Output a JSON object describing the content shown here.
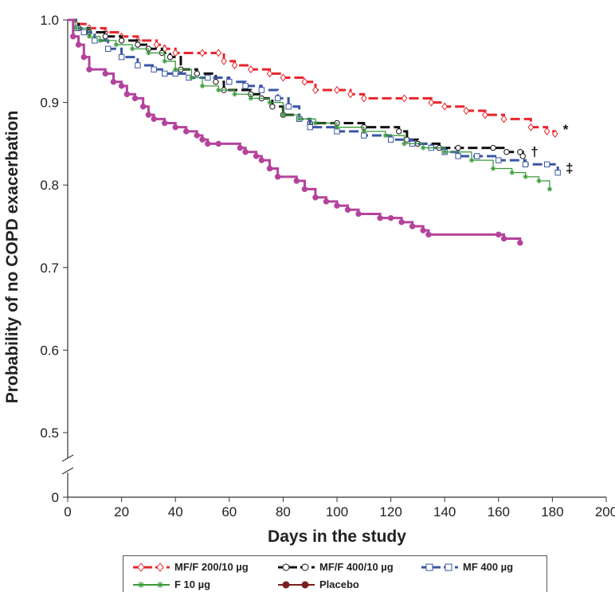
{
  "chart_data": {
    "type": "line",
    "subtype": "kaplan-meier step",
    "xlabel": "Days in the study",
    "ylabel": "Probability of no COPD exacerbation",
    "xlim": [
      0,
      200
    ],
    "ylim_upper": [
      0.5,
      1.0
    ],
    "y_axis_break": true,
    "x_ticks": [
      "0",
      "20",
      "40",
      "60",
      "80",
      "100",
      "120",
      "140",
      "160",
      "180",
      "200"
    ],
    "y_ticks": [
      "0",
      "0.5",
      "0.6",
      "0.7",
      "0.8",
      "0.9",
      "1.0"
    ],
    "grid": false,
    "legend_position": "bottom",
    "series": [
      {
        "name": "MF/F 200/10 µg",
        "color": "#e8262c",
        "dash": "dashed",
        "marker": "diamond",
        "end_symbol": "*",
        "x": [
          0,
          3,
          8,
          14,
          20,
          26,
          33,
          36,
          40,
          50,
          56,
          58,
          62,
          68,
          75,
          80,
          88,
          92,
          100,
          105,
          110,
          125,
          135,
          140,
          148,
          155,
          162,
          172,
          178,
          181
        ],
        "y": [
          1.0,
          0.995,
          0.99,
          0.985,
          0.98,
          0.975,
          0.97,
          0.965,
          0.96,
          0.96,
          0.96,
          0.95,
          0.945,
          0.94,
          0.935,
          0.93,
          0.925,
          0.915,
          0.915,
          0.91,
          0.905,
          0.905,
          0.9,
          0.895,
          0.89,
          0.885,
          0.88,
          0.87,
          0.865,
          0.862
        ]
      },
      {
        "name": "MF/F 400/10 µg",
        "color": "#111111",
        "dash": "dashed",
        "marker": "circle",
        "end_symbol": "†",
        "x": [
          0,
          4,
          8,
          14,
          20,
          26,
          30,
          35,
          38,
          42,
          48,
          55,
          58,
          68,
          72,
          76,
          80,
          86,
          90,
          100,
          110,
          123,
          126,
          130,
          138,
          145,
          158,
          163,
          168,
          169
        ],
        "y": [
          1.0,
          0.99,
          0.985,
          0.98,
          0.975,
          0.97,
          0.965,
          0.96,
          0.955,
          0.94,
          0.935,
          0.925,
          0.915,
          0.91,
          0.905,
          0.895,
          0.885,
          0.88,
          0.875,
          0.875,
          0.87,
          0.865,
          0.855,
          0.85,
          0.845,
          0.845,
          0.845,
          0.84,
          0.84,
          0.835
        ]
      },
      {
        "name": "MF 400 µg",
        "color": "#3a56a6",
        "dash": "dashed",
        "marker": "square",
        "end_symbol": "‡",
        "x": [
          0,
          3,
          6,
          10,
          15,
          20,
          26,
          32,
          36,
          40,
          45,
          52,
          60,
          66,
          72,
          78,
          82,
          86,
          90,
          100,
          110,
          120,
          128,
          135,
          140,
          145,
          152,
          160,
          170,
          178,
          182
        ],
        "y": [
          1.0,
          0.99,
          0.985,
          0.975,
          0.965,
          0.955,
          0.945,
          0.94,
          0.935,
          0.935,
          0.93,
          0.93,
          0.925,
          0.92,
          0.915,
          0.905,
          0.895,
          0.88,
          0.87,
          0.865,
          0.86,
          0.855,
          0.85,
          0.845,
          0.84,
          0.835,
          0.835,
          0.83,
          0.825,
          0.825,
          0.815
        ]
      },
      {
        "name": "F 10 µg",
        "color": "#3a9a3a",
        "dash": "solid",
        "marker": "star",
        "end_symbol": "",
        "x": [
          0,
          3,
          8,
          12,
          18,
          24,
          30,
          36,
          40,
          46,
          50,
          56,
          62,
          68,
          75,
          80,
          86,
          92,
          100,
          110,
          118,
          125,
          132,
          140,
          150,
          158,
          165,
          170,
          175,
          179
        ],
        "y": [
          1.0,
          0.99,
          0.98,
          0.975,
          0.97,
          0.965,
          0.96,
          0.95,
          0.94,
          0.93,
          0.92,
          0.915,
          0.91,
          0.905,
          0.9,
          0.885,
          0.88,
          0.875,
          0.87,
          0.865,
          0.86,
          0.85,
          0.845,
          0.84,
          0.83,
          0.82,
          0.815,
          0.81,
          0.805,
          0.795
        ]
      },
      {
        "name": "Placebo",
        "color": "#b4439c",
        "dash": "solid",
        "marker": "circle",
        "end_symbol": "",
        "x": [
          0,
          2,
          4,
          6,
          8,
          14,
          17,
          20,
          22,
          25,
          28,
          30,
          32,
          36,
          40,
          44,
          48,
          50,
          52,
          56,
          64,
          66,
          70,
          72,
          75,
          78,
          85,
          88,
          92,
          96,
          100,
          104,
          108,
          116,
          120,
          124,
          128,
          132,
          134,
          160,
          162,
          168
        ],
        "y": [
          1.0,
          0.98,
          0.97,
          0.955,
          0.94,
          0.935,
          0.925,
          0.92,
          0.91,
          0.905,
          0.895,
          0.885,
          0.88,
          0.875,
          0.87,
          0.865,
          0.86,
          0.855,
          0.85,
          0.85,
          0.845,
          0.84,
          0.835,
          0.83,
          0.82,
          0.81,
          0.805,
          0.795,
          0.785,
          0.78,
          0.775,
          0.77,
          0.765,
          0.76,
          0.76,
          0.755,
          0.75,
          0.745,
          0.74,
          0.74,
          0.735,
          0.73
        ]
      }
    ]
  }
}
